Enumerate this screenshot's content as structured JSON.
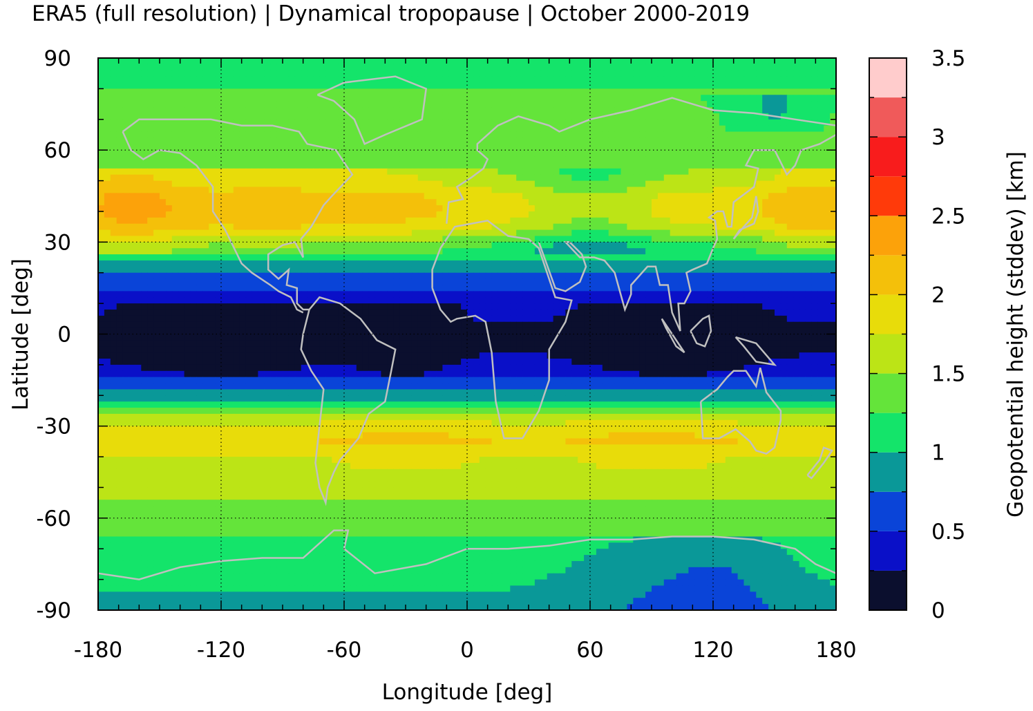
{
  "chart_data": {
    "type": "heatmap",
    "title": "ERA5 (full resolution) | Dynamical tropopause | October 2000-2019",
    "xlabel": "Longitude [deg]",
    "ylabel": "Latitude [deg]",
    "xlim": [
      -180,
      180
    ],
    "ylim": [
      -90,
      90
    ],
    "xticks": [
      -180,
      -120,
      -60,
      0,
      60,
      120,
      180
    ],
    "yticks": [
      -90,
      -60,
      -30,
      0,
      30,
      60,
      90
    ],
    "grid": true,
    "colorbar": {
      "label": "Geopotential height (stddev) [km]",
      "range": [
        0,
        3.5
      ],
      "ticks": [
        "0",
        "0.5",
        "1",
        "1.5",
        "2",
        "2.5",
        "3",
        "3.5"
      ],
      "levels": [
        0,
        0.25,
        0.5,
        0.75,
        1.0,
        1.25,
        1.5,
        1.75,
        2.0,
        2.25,
        2.5,
        2.75,
        3.0,
        3.25,
        3.5
      ],
      "colors": [
        "#0b0f2e",
        "#0a10c8",
        "#0a44d8",
        "#0a9898",
        "#14e46a",
        "#64e43a",
        "#bce416",
        "#e8dc0a",
        "#f4c00a",
        "#fca20a",
        "#ff3a0a",
        "#f81c1c",
        "#f05a5a",
        "#ffcccc"
      ]
    },
    "lat_profile": {
      "lat": [
        90,
        80,
        70,
        60,
        50,
        45,
        40,
        35,
        30,
        25,
        20,
        15,
        10,
        5,
        0,
        -5,
        -10,
        -15,
        -20,
        -25,
        -30,
        -35,
        -40,
        -50,
        -60,
        -70,
        -80,
        -90
      ],
      "value": [
        1.1,
        1.25,
        1.3,
        1.35,
        1.6,
        1.85,
        1.9,
        1.75,
        1.3,
        1.05,
        0.75,
        0.5,
        0.35,
        0.3,
        0.2,
        0.25,
        0.35,
        0.55,
        0.8,
        1.3,
        1.8,
        1.95,
        1.7,
        1.55,
        1.4,
        1.15,
        1.05,
        0.95
      ]
    }
  }
}
